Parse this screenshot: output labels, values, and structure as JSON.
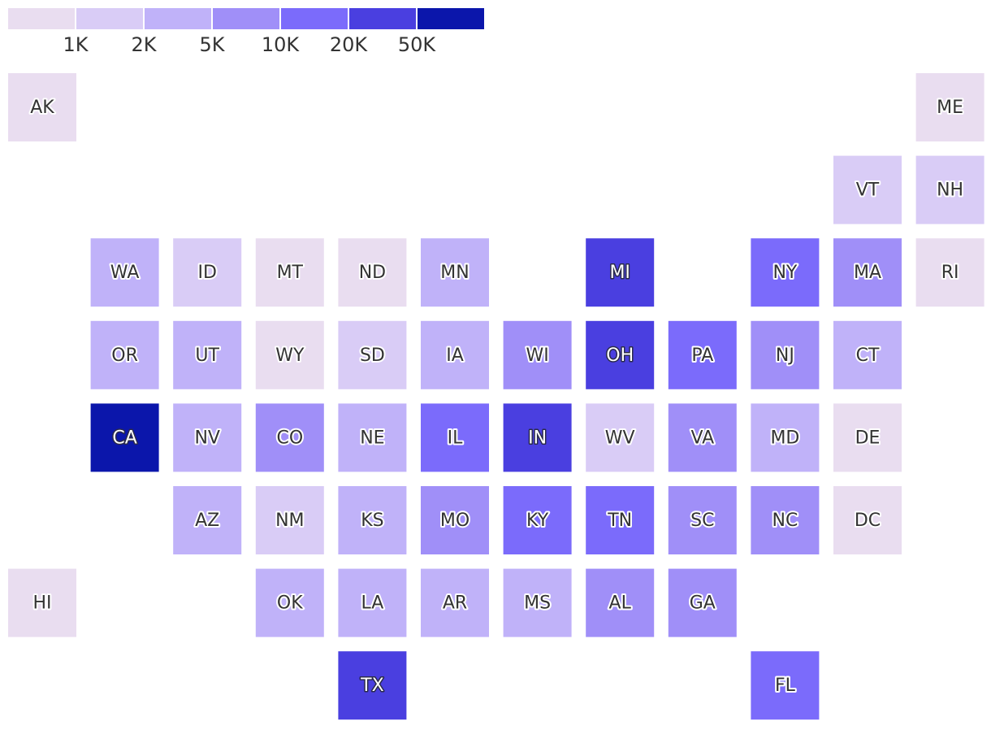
{
  "legend": {
    "colors": [
      "#e9ddf0",
      "#d9ccf6",
      "#c0b2f9",
      "#a08ff8",
      "#7b6bfb",
      "#4a3fe0",
      "#0b16ab"
    ],
    "labels": [
      "1K",
      "2K",
      "5K",
      "10K",
      "20K",
      "50K"
    ]
  },
  "map": {
    "rows": [
      [
        {
          "label": "AK",
          "bin": 0
        },
        null,
        null,
        null,
        null,
        null,
        null,
        null,
        null,
        null,
        null,
        {
          "label": "ME",
          "bin": 0
        }
      ],
      [
        null,
        null,
        null,
        null,
        null,
        null,
        null,
        null,
        null,
        null,
        {
          "label": "VT",
          "bin": 1
        },
        {
          "label": "NH",
          "bin": 1
        }
      ],
      [
        null,
        {
          "label": "WA",
          "bin": 2
        },
        {
          "label": "ID",
          "bin": 1
        },
        {
          "label": "MT",
          "bin": 0
        },
        {
          "label": "ND",
          "bin": 0
        },
        {
          "label": "MN",
          "bin": 2
        },
        null,
        {
          "label": "MI",
          "bin": 5
        },
        null,
        {
          "label": "NY",
          "bin": 4
        },
        {
          "label": "MA",
          "bin": 3
        },
        {
          "label": "RI",
          "bin": 0
        }
      ],
      [
        null,
        {
          "label": "OR",
          "bin": 2
        },
        {
          "label": "UT",
          "bin": 2
        },
        {
          "label": "WY",
          "bin": 0
        },
        {
          "label": "SD",
          "bin": 1
        },
        {
          "label": "IA",
          "bin": 2
        },
        {
          "label": "WI",
          "bin": 3
        },
        {
          "label": "OH",
          "bin": 5
        },
        {
          "label": "PA",
          "bin": 4
        },
        {
          "label": "NJ",
          "bin": 3
        },
        {
          "label": "CT",
          "bin": 2
        },
        null
      ],
      [
        null,
        {
          "label": "CA",
          "bin": 6
        },
        {
          "label": "NV",
          "bin": 2
        },
        {
          "label": "CO",
          "bin": 3
        },
        {
          "label": "NE",
          "bin": 2
        },
        {
          "label": "IL",
          "bin": 4
        },
        {
          "label": "IN",
          "bin": 5
        },
        {
          "label": "WV",
          "bin": 1
        },
        {
          "label": "VA",
          "bin": 3
        },
        {
          "label": "MD",
          "bin": 2
        },
        {
          "label": "DE",
          "bin": 0
        },
        null
      ],
      [
        null,
        null,
        {
          "label": "AZ",
          "bin": 2
        },
        {
          "label": "NM",
          "bin": 1
        },
        {
          "label": "KS",
          "bin": 2
        },
        {
          "label": "MO",
          "bin": 3
        },
        {
          "label": "KY",
          "bin": 4
        },
        {
          "label": "TN",
          "bin": 4
        },
        {
          "label": "SC",
          "bin": 3
        },
        {
          "label": "NC",
          "bin": 3
        },
        {
          "label": "DC",
          "bin": 0
        },
        null
      ],
      [
        {
          "label": "HI",
          "bin": 0
        },
        null,
        null,
        {
          "label": "OK",
          "bin": 2
        },
        {
          "label": "LA",
          "bin": 2
        },
        {
          "label": "AR",
          "bin": 2
        },
        {
          "label": "MS",
          "bin": 2
        },
        {
          "label": "AL",
          "bin": 3
        },
        {
          "label": "GA",
          "bin": 3
        },
        null,
        null,
        null
      ],
      [
        null,
        null,
        null,
        null,
        {
          "label": "TX",
          "bin": 5
        },
        null,
        null,
        null,
        null,
        {
          "label": "FL",
          "bin": 4
        },
        null,
        null
      ]
    ]
  }
}
